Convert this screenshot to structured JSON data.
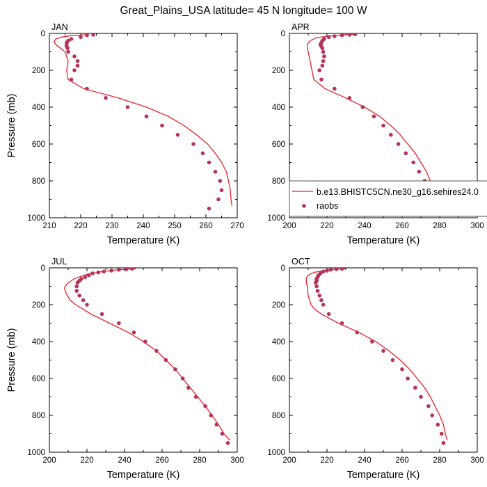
{
  "figure": {
    "title": "Great_Plains_USA  latitude= 45 N longitude= 100 W"
  },
  "legend": {
    "model_label": "b.e13.BHISTC5CN.ne30_g16.sehires24.0",
    "obs_label": "raobs",
    "model_color": "#e8202a",
    "obs_color": "#b5335c"
  },
  "chart_data": [
    {
      "type": "line",
      "panel": "JAN",
      "xlabel": "Temperature (K)",
      "ylabel": "Pressure (mb)",
      "xlim": [
        210,
        270
      ],
      "ylim": [
        1000,
        0
      ],
      "y_reversed": true,
      "xticks": [
        210,
        220,
        230,
        240,
        250,
        260,
        270
      ],
      "yticks": [
        0,
        200,
        400,
        600,
        800,
        1000
      ],
      "grid": false,
      "series": [
        {
          "name": "b.e13.BHISTC5CN.ne30_g16.sehires24.0",
          "kind": "line",
          "points": [
            [
              222,
              7
            ],
            [
              217,
              12
            ],
            [
              214,
              20
            ],
            [
              212,
              30
            ],
            [
              211.5,
              45
            ],
            [
              212,
              60
            ],
            [
              213.5,
              80
            ],
            [
              215,
              100
            ],
            [
              216,
              150
            ],
            [
              215.5,
              200
            ],
            [
              216,
              250
            ],
            [
              221,
              300
            ],
            [
              232,
              350
            ],
            [
              241,
              400
            ],
            [
              248,
              450
            ],
            [
              253,
              500
            ],
            [
              257,
              550
            ],
            [
              260.5,
              600
            ],
            [
              263,
              650
            ],
            [
              265,
              700
            ],
            [
              266.5,
              750
            ],
            [
              267.2,
              800
            ],
            [
              267.8,
              850
            ],
            [
              268,
              900
            ],
            [
              268.3,
              935
            ]
          ]
        },
        {
          "name": "raobs",
          "kind": "scatter",
          "points": [
            [
              224,
              7
            ],
            [
              222,
              10
            ],
            [
              220,
              20
            ],
            [
              217,
              30
            ],
            [
              216,
              40
            ],
            [
              215.5,
              50
            ],
            [
              215.5,
              60
            ],
            [
              215.5,
              70
            ],
            [
              215.8,
              80
            ],
            [
              216,
              100
            ],
            [
              218,
              125
            ],
            [
              219,
              150
            ],
            [
              219,
              175
            ],
            [
              218,
              200
            ],
            [
              217,
              250
            ],
            [
              222,
              300
            ],
            [
              228,
              350
            ],
            [
              235,
              400
            ],
            [
              241,
              450
            ],
            [
              246,
              500
            ],
            [
              251,
              550
            ],
            [
              256,
              600
            ],
            [
              259,
              650
            ],
            [
              261,
              700
            ],
            [
              263,
              750
            ],
            [
              264.5,
              800
            ],
            [
              265,
              850
            ],
            [
              264,
              900
            ],
            [
              261,
              950
            ]
          ]
        }
      ]
    },
    {
      "type": "line",
      "panel": "APR",
      "xlabel": "Temperature (K)",
      "ylabel": "",
      "xlim": [
        200,
        300
      ],
      "ylim": [
        1000,
        0
      ],
      "y_reversed": true,
      "xticks": [
        200,
        220,
        240,
        260,
        280,
        300
      ],
      "yticks": [
        0,
        200,
        400,
        600,
        800,
        1000
      ],
      "grid": false,
      "legend_position": "bottom-right",
      "series": [
        {
          "name": "b.e13.BHISTC5CN.ne30_g16.sehires24.0",
          "kind": "line",
          "points": [
            [
              236,
              5
            ],
            [
              228,
              8
            ],
            [
              220,
              15
            ],
            [
              214,
              25
            ],
            [
              211,
              40
            ],
            [
              209.5,
              60
            ],
            [
              209.5,
              80
            ],
            [
              210,
              100
            ],
            [
              211,
              150
            ],
            [
              212,
              200
            ],
            [
              213,
              250
            ],
            [
              219,
              300
            ],
            [
              230,
              350
            ],
            [
              240,
              400
            ],
            [
              248,
              450
            ],
            [
              254,
              500
            ],
            [
              259,
              550
            ],
            [
              263,
              600
            ],
            [
              267,
              650
            ],
            [
              270,
              700
            ],
            [
              273,
              750
            ],
            [
              275,
              800
            ],
            [
              277,
              850
            ],
            [
              279,
              900
            ],
            [
              282,
              935
            ]
          ]
        },
        {
          "name": "raobs",
          "kind": "scatter",
          "points": [
            [
              235,
              5
            ],
            [
              232,
              7
            ],
            [
              228,
              10
            ],
            [
              224,
              15
            ],
            [
              221,
              20
            ],
            [
              218.5,
              30
            ],
            [
              217.5,
              40
            ],
            [
              217,
              50
            ],
            [
              216.5,
              60
            ],
            [
              217,
              70
            ],
            [
              217.5,
              80
            ],
            [
              218,
              100
            ],
            [
              218.5,
              125
            ],
            [
              218,
              150
            ],
            [
              217.5,
              175
            ],
            [
              216,
              200
            ],
            [
              217,
              250
            ],
            [
              224,
              300
            ],
            [
              232,
              350
            ],
            [
              239,
              400
            ],
            [
              245,
              450
            ],
            [
              250,
              500
            ],
            [
              254,
              550
            ],
            [
              258,
              600
            ],
            [
              262,
              650
            ],
            [
              266,
              700
            ],
            [
              269,
              750
            ],
            [
              272,
              800
            ],
            [
              275,
              850
            ],
            [
              278,
              900
            ],
            [
              280,
              950
            ]
          ]
        }
      ]
    },
    {
      "type": "line",
      "panel": "JUL",
      "xlabel": "Temperature (K)",
      "ylabel": "Pressure (mb)",
      "xlim": [
        200,
        300
      ],
      "ylim": [
        1000,
        0
      ],
      "y_reversed": true,
      "xticks": [
        200,
        220,
        240,
        260,
        280,
        300
      ],
      "yticks": [
        0,
        200,
        400,
        600,
        800,
        1000
      ],
      "grid": false,
      "series": [
        {
          "name": "b.e13.BHISTC5CN.ne30_g16.sehires24.0",
          "kind": "line",
          "points": [
            [
              246,
              5
            ],
            [
              237,
              10
            ],
            [
              228,
              20
            ],
            [
              220,
              35
            ],
            [
              213,
              60
            ],
            [
              209,
              90
            ],
            [
              208,
              110
            ],
            [
              209,
              140
            ],
            [
              211,
              175
            ],
            [
              214,
              200
            ],
            [
              218,
              225
            ],
            [
              222,
              250
            ],
            [
              232,
              300
            ],
            [
              242,
              350
            ],
            [
              250,
              400
            ],
            [
              257,
              450
            ],
            [
              262,
              500
            ],
            [
              267,
              550
            ],
            [
              271,
              600
            ],
            [
              275,
              650
            ],
            [
              279,
              700
            ],
            [
              283,
              750
            ],
            [
              286.5,
              800
            ],
            [
              290,
              850
            ],
            [
              293,
              900
            ],
            [
              296,
              935
            ]
          ]
        },
        {
          "name": "raobs",
          "kind": "scatter",
          "points": [
            [
              244,
              5
            ],
            [
              241,
              7
            ],
            [
              237,
              10
            ],
            [
              233,
              15
            ],
            [
              229,
              20
            ],
            [
              226,
              25
            ],
            [
              223,
              30
            ],
            [
              221,
              40
            ],
            [
              219,
              50
            ],
            [
              217,
              60
            ],
            [
              216,
              70
            ],
            [
              215,
              80
            ],
            [
              214.5,
              100
            ],
            [
              214.5,
              125
            ],
            [
              216,
              150
            ],
            [
              218,
              175
            ],
            [
              220,
              200
            ],
            [
              228,
              250
            ],
            [
              237,
              300
            ],
            [
              245,
              350
            ],
            [
              251,
              400
            ],
            [
              257,
              450
            ],
            [
              262,
              500
            ],
            [
              267,
              550
            ],
            [
              271,
              600
            ],
            [
              274,
              650
            ],
            [
              278,
              700
            ],
            [
              283,
              750
            ],
            [
              286,
              800
            ],
            [
              289,
              850
            ],
            [
              292,
              900
            ],
            [
              295,
              950
            ]
          ]
        }
      ]
    },
    {
      "type": "line",
      "panel": "OCT",
      "xlabel": "Temperature (K)",
      "ylabel": "",
      "xlim": [
        200,
        300
      ],
      "ylim": [
        1000,
        0
      ],
      "y_reversed": true,
      "xticks": [
        200,
        220,
        240,
        260,
        280,
        300
      ],
      "yticks": [
        0,
        200,
        400,
        600,
        800,
        1000
      ],
      "grid": false,
      "series": [
        {
          "name": "b.e13.BHISTC5CN.ne30_g16.sehires24.0",
          "kind": "line",
          "points": [
            [
              230,
              5
            ],
            [
              224,
              8
            ],
            [
              218,
              15
            ],
            [
              213,
              25
            ],
            [
              210,
              40
            ],
            [
              209,
              55
            ],
            [
              209,
              80
            ],
            [
              209.5,
              100
            ],
            [
              210,
              150
            ],
            [
              211.5,
              200
            ],
            [
              213.5,
              225
            ],
            [
              217,
              250
            ],
            [
              226,
              300
            ],
            [
              237,
              350
            ],
            [
              246,
              400
            ],
            [
              253,
              450
            ],
            [
              259,
              500
            ],
            [
              264,
              550
            ],
            [
              268,
              600
            ],
            [
              272,
              650
            ],
            [
              275,
              700
            ],
            [
              277.5,
              750
            ],
            [
              280,
              800
            ],
            [
              282,
              850
            ],
            [
              283,
              900
            ],
            [
              284,
              935
            ]
          ]
        },
        {
          "name": "raobs",
          "kind": "scatter",
          "points": [
            [
              228,
              5
            ],
            [
              225,
              7
            ],
            [
              222,
              10
            ],
            [
              220,
              15
            ],
            [
              218,
              20
            ],
            [
              216.5,
              30
            ],
            [
              215.5,
              40
            ],
            [
              215,
              50
            ],
            [
              214.5,
              60
            ],
            [
              214.5,
              70
            ],
            [
              214,
              80
            ],
            [
              214.5,
              100
            ],
            [
              215,
              125
            ],
            [
              216,
              150
            ],
            [
              217,
              175
            ],
            [
              218,
              200
            ],
            [
              221,
              250
            ],
            [
              228,
              300
            ],
            [
              236,
              350
            ],
            [
              244,
              400
            ],
            [
              250,
              450
            ],
            [
              255,
              500
            ],
            [
              260,
              550
            ],
            [
              263,
              600
            ],
            [
              267,
              650
            ],
            [
              270,
              700
            ],
            [
              274,
              750
            ],
            [
              276,
              800
            ],
            [
              279,
              850
            ],
            [
              281,
              900
            ],
            [
              282,
              950
            ]
          ]
        }
      ]
    }
  ]
}
